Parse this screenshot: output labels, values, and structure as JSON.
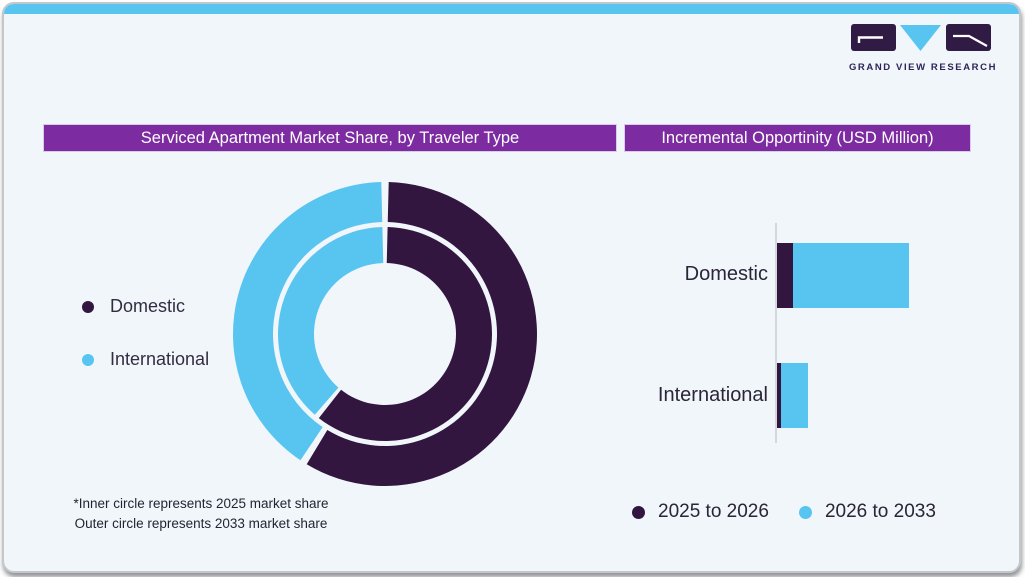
{
  "logo": {
    "wordmark": "GRAND VIEW RESEARCH"
  },
  "panels": {
    "left": {
      "title": "Serviced Apartment Market Share, by Traveler Type",
      "footnote_lines": [
        "*Inner circle represents 2025 market share",
        "Outer circle represents 2033 market share"
      ]
    },
    "right": {
      "title": "Incremental Opportinity (USD Million)"
    }
  },
  "colors": {
    "accent_blue": "#58c5f1",
    "dark_purple": "#321640",
    "header_purple": "#7c2ba1",
    "card_background": "#f0f6fa",
    "logo_wordmark": "#2f2358",
    "axis_line": "#c8cdd4"
  },
  "chart_data": [
    {
      "type": "pie",
      "variant": "double_ring_donut",
      "title": "Serviced Apartment Market Share, by Traveler Type",
      "categories": [
        "Domestic",
        "International"
      ],
      "category_colors": [
        "#321640",
        "#58c5f1"
      ],
      "series": [
        {
          "name": "2025 market share (inner circle)",
          "ring": "inner",
          "values": [
            61,
            39
          ]
        },
        {
          "name": "2033 market share (outer circle)",
          "ring": "outer",
          "values": [
            59,
            41
          ]
        }
      ],
      "units": "percent (estimated from arc angles; no numeric labels shown)",
      "legend_position": "left"
    },
    {
      "type": "bar",
      "orientation": "horizontal",
      "stacked": true,
      "title": "Incremental Opportinity (USD Million)",
      "categories": [
        "Domestic",
        "International"
      ],
      "series": [
        {
          "name": "2025 to 2026",
          "color": "#321640",
          "values": [
            16,
            4
          ]
        },
        {
          "name": "2026 to 2033",
          "color": "#58c5f1",
          "values": [
            116,
            27
          ]
        }
      ],
      "units": "relative bar length (axis shows no tick labels)",
      "legend_position": "bottom"
    }
  ]
}
